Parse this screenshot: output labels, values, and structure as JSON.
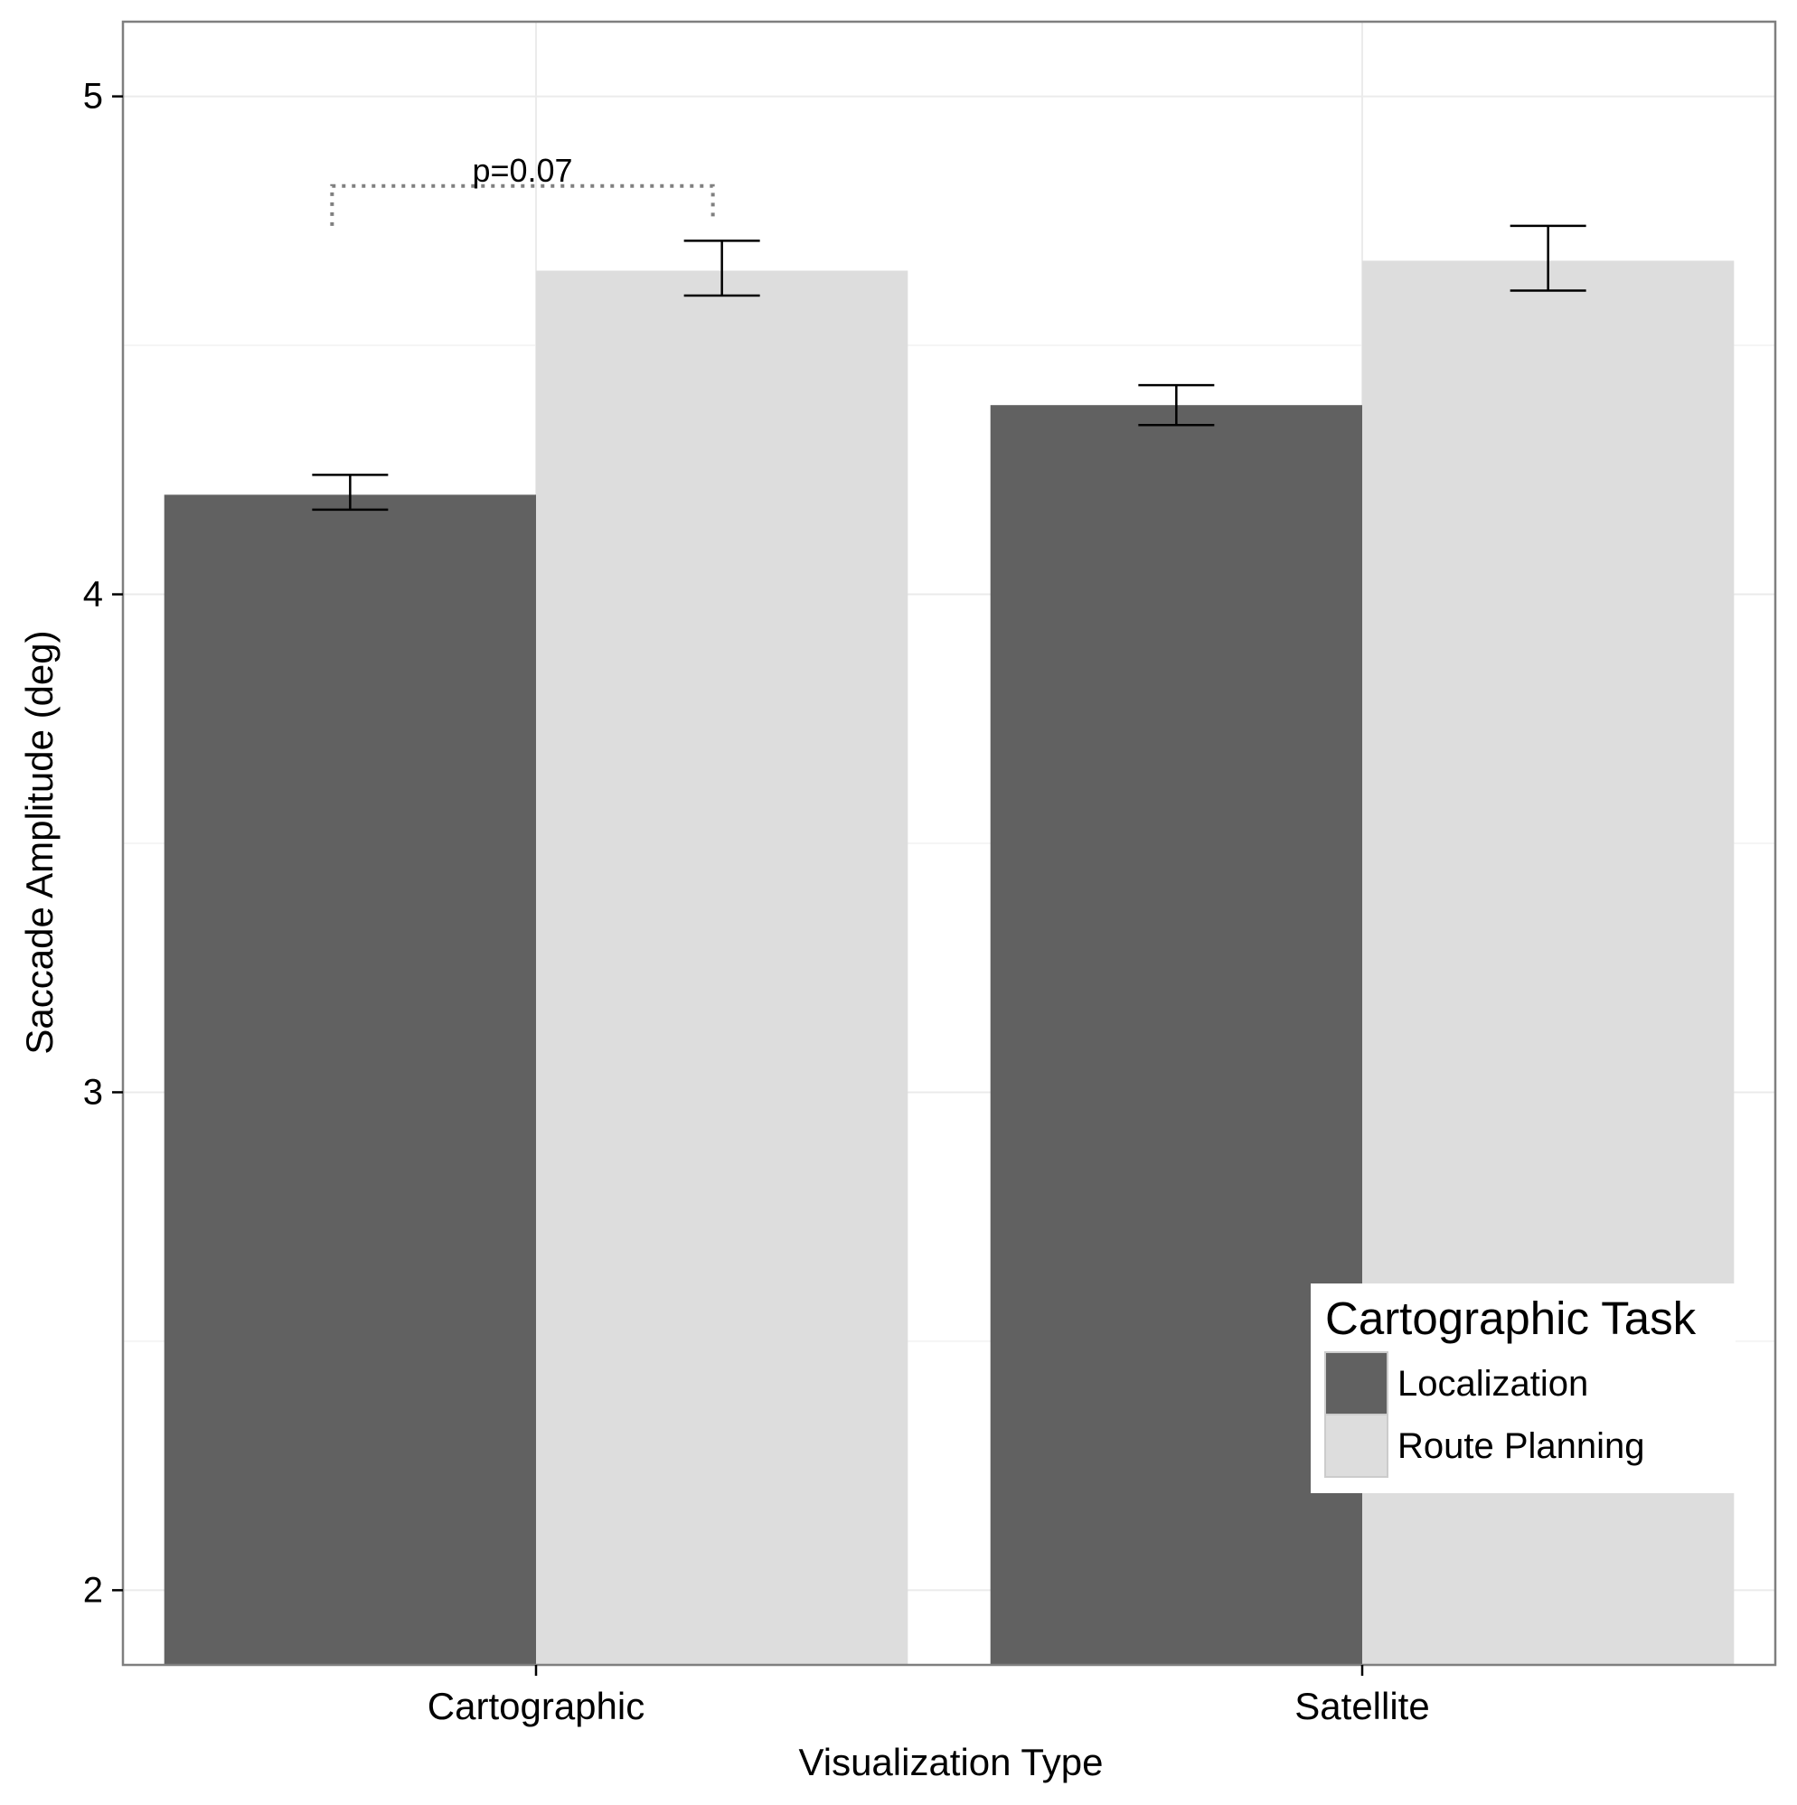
{
  "chart_data": {
    "type": "bar",
    "categories": [
      "Cartographic",
      "Satellite"
    ],
    "series": [
      {
        "name": "Localization",
        "values": [
          4.2,
          4.38
        ],
        "error_low": [
          4.17,
          4.34
        ],
        "error_high": [
          4.24,
          4.42
        ],
        "color": "#616161"
      },
      {
        "name": "Route Planning",
        "values": [
          4.65,
          4.67
        ],
        "error_low": [
          4.6,
          4.61
        ],
        "error_high": [
          4.71,
          4.74
        ],
        "color": "#dddddd"
      }
    ],
    "title": "",
    "xlabel": "Visualization Type",
    "ylabel": "Saccade Amplitude (deg)",
    "ylim": [
      1.85,
      5.15
    ],
    "yticks": [
      2,
      3,
      4,
      5
    ],
    "ytick_labels": [
      "2",
      "3",
      "4",
      "5"
    ],
    "legend": {
      "title": "Cartographic Task",
      "position": "bottom-right"
    },
    "annotation": {
      "text": "p=0.07",
      "category": "Cartographic",
      "between": [
        "Localization",
        "Route Planning"
      ],
      "bracket_y": 4.82,
      "left_foot": 4.74,
      "right_foot": 4.75
    },
    "grid": true,
    "colors": {
      "grid": "#ebebeb",
      "panel_border": "#7f7f7f",
      "error_bar": "#000000",
      "bracket": "#808080"
    }
  }
}
